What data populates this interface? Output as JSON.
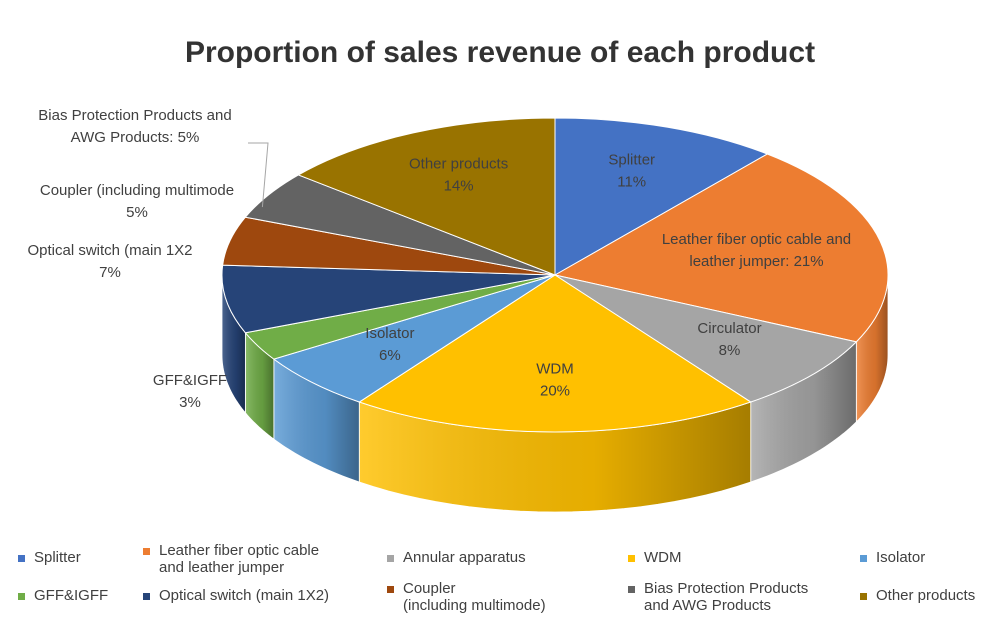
{
  "chart_data": {
    "type": "pie",
    "title": "Proportion of sales revenue of each product",
    "slices": [
      {
        "name": "Splitter",
        "legend": "Splitter",
        "value": 11,
        "label": [
          "Splitter",
          "11%"
        ],
        "color": "#4472C4"
      },
      {
        "name": "Leather fiber optic cable and leather jumper",
        "legend": "Leather fiber optic cable\nand leather jumper",
        "value": 21,
        "label": [
          "Leather fiber optic cable and",
          "leather jumper: 21%"
        ],
        "color": "#ED7D31"
      },
      {
        "name": "Annular apparatus",
        "legend": "Annular apparatus",
        "value": 8,
        "label": [
          "Circulator",
          "8%"
        ],
        "color": "#A5A5A5"
      },
      {
        "name": "WDM",
        "legend": "WDM",
        "value": 20,
        "label": [
          "WDM",
          "20%"
        ],
        "color": "#FFC000"
      },
      {
        "name": "Isolator",
        "legend": "Isolator",
        "value": 6,
        "label": [
          "Isolator",
          "6%"
        ],
        "color": "#5B9BD5"
      },
      {
        "name": "GFF&IGFF",
        "legend": "GFF&IGFF",
        "value": 3,
        "label": [
          "GFF&IGFF",
          "3%"
        ],
        "color": "#70AD47"
      },
      {
        "name": "Optical switch (main 1X2)",
        "legend": "Optical switch (main 1X2)",
        "value": 7,
        "label": [
          "Optical switch (main 1X2",
          "7%"
        ],
        "color": "#264478"
      },
      {
        "name": "Coupler (including multimode)",
        "legend": "Coupler\n(including multimode)",
        "value": 5,
        "label": [
          "Coupler (including multimode",
          "5%"
        ],
        "color": "#9E480E"
      },
      {
        "name": "Bias Protection Products and AWG Products",
        "legend": "Bias Protection Products\nand AWG Products",
        "value": 5,
        "label": [
          "Bias Protection Products and",
          "AWG Products: 5%"
        ],
        "color": "#636363"
      },
      {
        "name": "Other products",
        "legend": "Other products",
        "value": 14,
        "label": [
          "Other products",
          "14%"
        ],
        "color": "#997300"
      }
    ],
    "legend_position": "bottom"
  }
}
